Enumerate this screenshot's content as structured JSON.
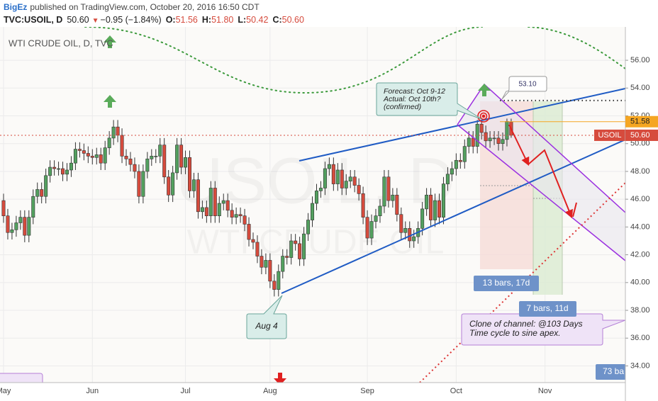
{
  "header": {
    "author": "BigEz",
    "published": "published on TradingView.com, October 20, 2016 16:50 CDT",
    "symbol": "TVC:USOIL, D",
    "last": "50.60",
    "arrow": "▼",
    "change": "−0.95 (−1.84%)",
    "ohlc": [
      [
        "O:",
        "51.56"
      ],
      [
        "H:",
        "51.80"
      ],
      [
        "L:",
        "50.42"
      ],
      [
        "C:",
        "50.60"
      ]
    ]
  },
  "chart_data": {
    "type": "candlestick",
    "legend": "WTI CRUDE OIL, D, TVC",
    "watermark": [
      "USOIL, D",
      "WTI CRUDE OIL"
    ],
    "categories": [
      "May",
      null,
      null,
      null,
      null,
      null,
      null,
      null,
      null,
      null,
      null,
      null,
      null,
      null,
      null,
      null,
      null,
      null,
      null,
      null,
      null,
      "Jun",
      null,
      null,
      null,
      null,
      null,
      null,
      null,
      null,
      null,
      null,
      null,
      null,
      null,
      null,
      null,
      null,
      null,
      null,
      null,
      null,
      null,
      "Jul",
      null,
      null,
      null,
      null,
      null,
      null,
      null,
      null,
      null,
      null,
      null,
      null,
      null,
      null,
      null,
      null,
      null,
      null,
      null,
      "Aug",
      null,
      null,
      null,
      null,
      null,
      null,
      null,
      null,
      null,
      null,
      null,
      null,
      null,
      null,
      null,
      null,
      null,
      null,
      null,
      null,
      null,
      null,
      "Sep",
      null,
      null,
      null,
      null,
      null,
      null,
      null,
      null,
      null,
      null,
      null,
      null,
      null,
      null,
      null,
      null,
      null,
      null,
      null,
      null,
      "Oct",
      null,
      null,
      null,
      null,
      null,
      null,
      null,
      null,
      null,
      null,
      null,
      null,
      null,
      null,
      null,
      null,
      null,
      null,
      null,
      null,
      "Nov",
      null,
      null,
      null,
      null,
      null,
      null,
      null,
      null,
      null,
      null,
      null,
      null,
      null,
      null,
      null,
      null,
      null,
      null,
      null
    ],
    "open": [
      45.9,
      44.8,
      43.6,
      43.8,
      44.3,
      44.7,
      43.4,
      44.7,
      46.2,
      46.7,
      46.2,
      47.7,
      48.3,
      48.2,
      48.2,
      47.8,
      48.1,
      48.6,
      49.6,
      49.5,
      49.3,
      49.1,
      49.0,
      49.2,
      48.6,
      49.7,
      50.4,
      51.2,
      50.6,
      49.1,
      48.9,
      48.5,
      48.0,
      46.2,
      48.0,
      48.9,
      49.1,
      49.1,
      49.9,
      47.6,
      46.3,
      47.9,
      49.9,
      48.3,
      49.0,
      46.6,
      47.4,
      45.1,
      45.4,
      44.8,
      46.8,
      44.8,
      45.7,
      45.9,
      45.2,
      44.7,
      44.9,
      44.8,
      44.2,
      43.1,
      42.9,
      41.9,
      41.1,
      41.6,
      40.1,
      39.5,
      40.8,
      41.9,
      41.8,
      43.0,
      42.8,
      41.7,
      43.5,
      44.5,
      45.7,
      46.6,
      46.8,
      48.2,
      48.5,
      47.1,
      48.1,
      46.8,
      47.3,
      47.6,
      47.0,
      46.4,
      44.7,
      43.2,
      44.4,
      44.8,
      45.5,
      47.6,
      45.9,
      46.3,
      44.9,
      43.6,
      43.9,
      43.0,
      43.3,
      43.9,
      45.3,
      46.3,
      44.5,
      45.9,
      44.7,
      47.1,
      47.8,
      48.2,
      48.8,
      48.7,
      49.8,
      50.4,
      49.8,
      51.4,
      50.8,
      50.2,
      50.4,
      50.4,
      50.0,
      50.3,
      51.56,
      null,
      null,
      null,
      null,
      null,
      null,
      null,
      null,
      null,
      null,
      null,
      null,
      null,
      null,
      null,
      null,
      null,
      null,
      null,
      null,
      null,
      null,
      null,
      null,
      null,
      null,
      null
    ],
    "high": [
      46.4,
      45.3,
      44.3,
      44.8,
      45.2,
      45.2,
      45.2,
      46.7,
      47.2,
      47.2,
      48.2,
      48.8,
      48.8,
      48.7,
      48.7,
      48.6,
      49.1,
      50.1,
      50.1,
      50.0,
      49.8,
      49.6,
      49.7,
      49.7,
      50.2,
      50.9,
      51.7,
      51.7,
      51.1,
      49.6,
      49.4,
      49.0,
      48.5,
      48.5,
      49.4,
      49.6,
      49.6,
      50.4,
      50.4,
      48.1,
      48.4,
      50.4,
      50.4,
      49.5,
      49.5,
      47.9,
      47.9,
      45.9,
      45.9,
      47.3,
      47.3,
      46.2,
      46.4,
      46.4,
      45.7,
      45.4,
      45.4,
      45.3,
      44.7,
      43.6,
      43.4,
      42.4,
      42.1,
      42.1,
      40.6,
      41.3,
      42.4,
      42.4,
      43.5,
      43.5,
      43.3,
      44.0,
      45.0,
      46.2,
      47.1,
      47.3,
      48.7,
      49.0,
      49.0,
      48.6,
      48.6,
      47.8,
      48.1,
      48.1,
      47.5,
      46.9,
      45.2,
      44.9,
      45.3,
      46.0,
      48.1,
      48.1,
      46.8,
      46.8,
      45.4,
      44.4,
      44.4,
      43.8,
      44.4,
      45.8,
      46.8,
      46.8,
      46.4,
      46.4,
      47.6,
      48.3,
      48.7,
      49.3,
      49.3,
      50.3,
      50.9,
      50.9,
      51.7,
      51.6,
      51.3,
      50.9,
      50.9,
      50.9,
      50.8,
      51.8,
      51.8,
      null,
      null,
      null,
      null,
      null,
      null,
      null,
      null,
      null,
      null,
      null,
      null,
      null,
      null,
      null,
      null,
      null,
      null,
      null,
      null,
      null,
      null,
      null,
      null,
      null,
      null,
      null
    ],
    "low": [
      44.3,
      43.1,
      43.1,
      43.3,
      43.8,
      42.9,
      42.9,
      44.2,
      45.7,
      45.7,
      45.7,
      47.2,
      47.7,
      47.7,
      47.3,
      47.3,
      47.6,
      48.1,
      49.0,
      48.8,
      48.6,
      48.5,
      48.5,
      48.1,
      48.1,
      49.2,
      49.9,
      50.1,
      48.6,
      48.4,
      48.0,
      47.5,
      45.7,
      45.7,
      47.5,
      48.4,
      48.6,
      48.6,
      47.1,
      45.8,
      45.8,
      47.4,
      47.8,
      47.8,
      46.1,
      46.1,
      44.6,
      44.6,
      44.3,
      44.3,
      44.3,
      44.3,
      45.2,
      44.7,
      44.2,
      44.2,
      44.3,
      43.7,
      42.6,
      42.4,
      41.4,
      40.6,
      40.6,
      39.6,
      39.0,
      39.0,
      40.3,
      41.3,
      41.3,
      42.3,
      41.2,
      41.2,
      43.0,
      44.0,
      45.2,
      46.1,
      46.3,
      47.7,
      46.6,
      46.6,
      46.3,
      46.3,
      46.8,
      46.5,
      45.9,
      44.2,
      42.7,
      42.7,
      43.9,
      44.3,
      45.0,
      45.4,
      45.4,
      44.4,
      43.1,
      43.1,
      42.5,
      42.5,
      42.8,
      43.4,
      44.8,
      44.0,
      44.0,
      44.2,
      44.2,
      46.6,
      47.3,
      47.7,
      48.2,
      48.2,
      49.3,
      49.3,
      49.3,
      50.3,
      49.7,
      49.7,
      49.9,
      49.5,
      49.5,
      49.8,
      50.42,
      null,
      null,
      null,
      null,
      null,
      null,
      null,
      null,
      null,
      null,
      null,
      null,
      null,
      null,
      null,
      null,
      null,
      null,
      null,
      null,
      null,
      null,
      null,
      null,
      null,
      null,
      null
    ],
    "close": [
      44.8,
      43.6,
      43.8,
      44.3,
      44.7,
      43.4,
      44.7,
      46.2,
      46.7,
      46.2,
      47.7,
      48.3,
      48.2,
      48.2,
      47.8,
      48.1,
      48.6,
      49.6,
      49.5,
      49.3,
      49.1,
      49.0,
      49.2,
      48.6,
      49.7,
      50.4,
      51.2,
      50.6,
      49.1,
      48.9,
      48.5,
      48.0,
      46.2,
      48.0,
      48.9,
      49.1,
      49.1,
      49.9,
      47.6,
      46.3,
      47.9,
      49.9,
      48.3,
      49.0,
      46.6,
      47.4,
      45.1,
      45.4,
      44.8,
      46.8,
      44.8,
      45.7,
      45.9,
      45.2,
      44.7,
      44.9,
      44.8,
      44.2,
      43.1,
      42.9,
      41.9,
      41.1,
      41.6,
      40.1,
      39.5,
      40.8,
      41.9,
      41.8,
      43.0,
      42.8,
      41.7,
      43.5,
      44.5,
      45.7,
      46.6,
      46.8,
      48.2,
      48.5,
      47.1,
      48.1,
      46.8,
      47.3,
      47.6,
      47.0,
      46.4,
      44.7,
      43.2,
      44.4,
      44.8,
      45.5,
      47.6,
      45.9,
      46.3,
      44.9,
      43.6,
      43.9,
      43.0,
      43.3,
      43.9,
      45.3,
      46.3,
      44.5,
      45.9,
      44.7,
      47.1,
      47.8,
      48.2,
      48.8,
      48.7,
      49.8,
      50.4,
      49.8,
      51.4,
      50.8,
      50.2,
      50.4,
      50.4,
      50.0,
      50.3,
      51.6,
      50.6,
      null,
      null,
      null,
      null,
      null,
      null,
      null,
      null,
      null,
      null,
      null,
      null,
      null,
      null,
      null,
      null,
      null,
      null,
      null,
      null,
      null,
      null,
      null,
      null,
      null,
      null,
      null
    ],
    "up_color": "#53a05f",
    "down_color": "#d64b3d",
    "ylim": [
      32.8,
      58.4
    ],
    "yticks": [
      {
        "value": 34,
        "label": "34.00"
      },
      {
        "value": 36,
        "label": "36.00"
      },
      {
        "value": 38,
        "label": "38.00"
      },
      {
        "value": 40,
        "label": "40.00"
      },
      {
        "value": 42,
        "label": "42.00"
      },
      {
        "value": 44,
        "label": "44.00"
      },
      {
        "value": 46,
        "label": "46.00"
      },
      {
        "value": 48,
        "label": "48.00"
      },
      {
        "value": 50,
        "label": "50.00"
      },
      {
        "value": 52,
        "label": "52.00"
      },
      {
        "value": 54,
        "label": "54.00"
      },
      {
        "value": 56,
        "label": "56.00"
      }
    ],
    "grid": true,
    "last_price": {
      "name": "USOIL",
      "value": 50.6,
      "label": "50.60",
      "color": "#d64b3d"
    },
    "levels": [
      {
        "value": 51.58,
        "label": "51.58",
        "color": "#f5a623"
      },
      {
        "value": 53.1,
        "label": "53.10"
      }
    ],
    "annotations": {
      "forecast": [
        "Forecast: Oct 9-12",
        "Actual: Oct 10th?",
        " (confirmed)"
      ],
      "low": "Aug 4",
      "bars1": "13 bars, 17d",
      "bars2": "7 bars, 11d",
      "clone": [
        "Clone of channel: @103 Days",
        "Time cycle to sine apex."
      ],
      "bars3": "73 ba"
    }
  }
}
